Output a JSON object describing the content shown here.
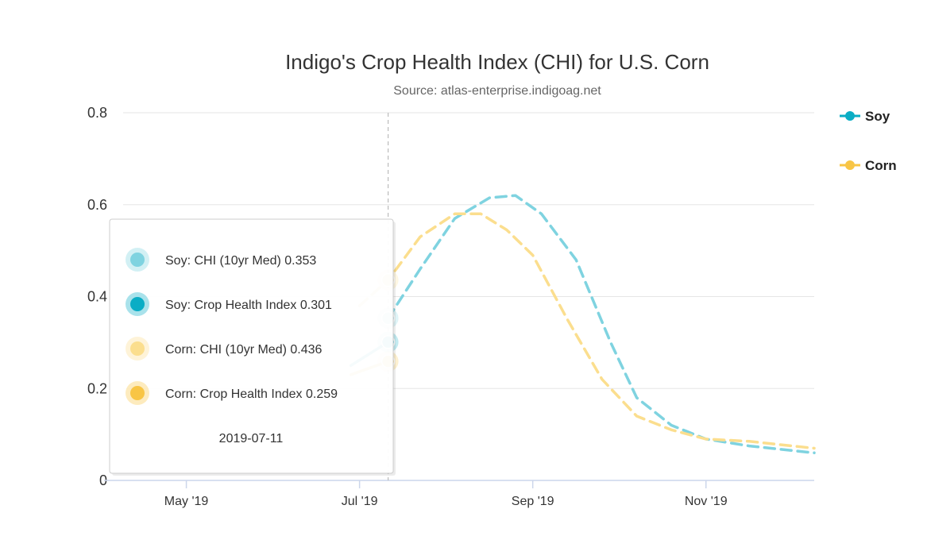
{
  "chart_data": {
    "type": "line",
    "title": "Indigo's Crop Health Index (CHI) for U.S. Corn",
    "subtitle": "Source: atlas-enterprise.indigoag.net",
    "xlabel": "",
    "ylabel": "",
    "ylim": [
      0,
      0.8
    ],
    "yticks": [
      0,
      0.2,
      0.4,
      0.6,
      0.8
    ],
    "ytick_labels": [
      "0",
      "0.2",
      "0.4",
      "0.6",
      "0.8"
    ],
    "xlim_months": [
      3.55,
      11.75
    ],
    "xticks": [
      {
        "label": "May '19",
        "month": 4.5
      },
      {
        "label": "Jul '19",
        "month": 6.5
      },
      {
        "label": "Sep '19",
        "month": 8.5
      },
      {
        "label": "Nov '19",
        "month": 10.5
      }
    ],
    "crosshair_month": 6.83,
    "colors": {
      "soy": "#0aadc5",
      "soy_median": "#7fd3e0",
      "corn": "#f8c545",
      "corn_median": "#fbde8e",
      "grid": "#e6e6e6",
      "axis": "#ccd6eb"
    },
    "legend": [
      {
        "name": "Soy",
        "color": "#0aadc5"
      },
      {
        "name": "Corn",
        "color": "#f8c545"
      }
    ],
    "series": [
      {
        "name": "Soy: CHI (10yr Med)",
        "style": "dashed",
        "color": "#7fd3e0",
        "x": [
          6.83,
          7.2,
          7.6,
          8.0,
          8.3,
          8.6,
          9.0,
          9.4,
          9.7,
          10.1,
          10.5,
          11.0,
          11.5,
          11.75
        ],
        "y": [
          0.353,
          0.46,
          0.57,
          0.615,
          0.62,
          0.58,
          0.48,
          0.3,
          0.18,
          0.12,
          0.09,
          0.075,
          0.065,
          0.06
        ]
      },
      {
        "name": "Corn: CHI (10yr Med)",
        "style": "dashed",
        "color": "#fbde8e",
        "x": [
          6.5,
          6.83,
          7.2,
          7.6,
          7.9,
          8.2,
          8.5,
          8.9,
          9.3,
          9.7,
          10.1,
          10.5,
          11.0,
          11.5,
          11.75
        ],
        "y": [
          0.38,
          0.436,
          0.53,
          0.58,
          0.58,
          0.545,
          0.49,
          0.35,
          0.22,
          0.14,
          0.11,
          0.09,
          0.085,
          0.075,
          0.07
        ]
      },
      {
        "name": "Soy: Crop Health Index",
        "style": "solid",
        "color": "#0aadc5",
        "x": [
          6.4,
          6.83
        ],
        "y": [
          0.25,
          0.301
        ]
      },
      {
        "name": "Corn: Crop Health Index",
        "style": "solid",
        "color": "#f8c545",
        "x": [
          6.4,
          6.83
        ],
        "y": [
          0.23,
          0.259
        ]
      }
    ],
    "tooltip": {
      "items": [
        {
          "label": "Soy: CHI (10yr Med) 0.353",
          "color": "#7fd3e0",
          "value": 0.353
        },
        {
          "label": "Soy: Crop Health Index 0.301",
          "color": "#0aadc5",
          "value": 0.301
        },
        {
          "label": "Corn: CHI (10yr Med) 0.436",
          "color": "#fbde8e",
          "value": 0.436
        },
        {
          "label": "Corn: Crop Health Index 0.259",
          "color": "#f8c545",
          "value": 0.259
        }
      ],
      "date": "2019-07-11"
    }
  }
}
